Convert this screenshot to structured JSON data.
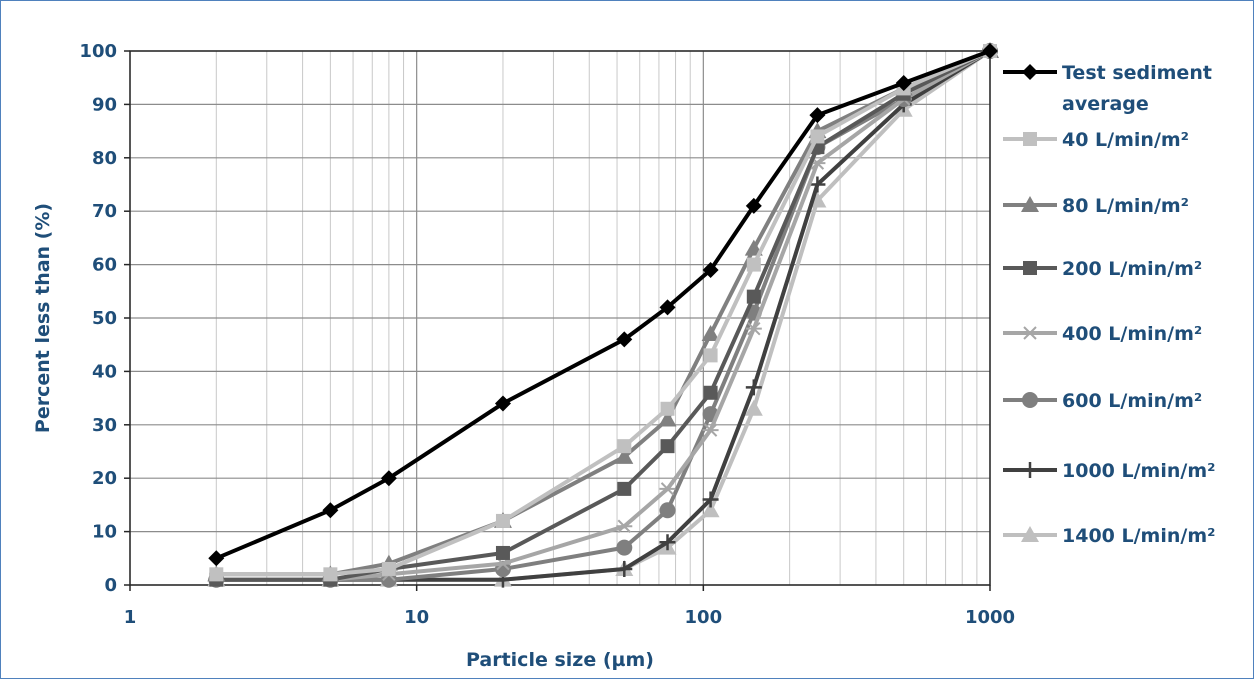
{
  "chart_data": {
    "type": "line",
    "title": "",
    "xlabel": "Particle size (µm)",
    "ylabel": "Percent less than (%)",
    "x_scale": "log",
    "xlim": [
      1,
      1000
    ],
    "ylim": [
      0,
      100
    ],
    "x_ticks": [
      "1",
      "10",
      "100",
      "1000"
    ],
    "y_ticks": [
      "0",
      "10",
      "20",
      "30",
      "40",
      "50",
      "60",
      "70",
      "80",
      "90",
      "100"
    ],
    "grid": true,
    "legend_position": "right",
    "series": [
      {
        "name": "Test sediment average",
        "color": "#000000",
        "marker": "diamond",
        "width": 4,
        "points": [
          [
            2,
            5
          ],
          [
            5,
            14
          ],
          [
            8,
            20
          ],
          [
            20,
            34
          ],
          [
            53,
            46
          ],
          [
            75,
            52
          ],
          [
            106,
            59
          ],
          [
            150,
            71
          ],
          [
            250,
            88
          ],
          [
            500,
            94
          ],
          [
            1000,
            100
          ]
        ]
      },
      {
        "name": "40 L/min/m²",
        "color": "#c0c0c0",
        "marker": "square",
        "width": 4,
        "points": [
          [
            2,
            2
          ],
          [
            5,
            2
          ],
          [
            8,
            3
          ],
          [
            20,
            12
          ],
          [
            53,
            26
          ],
          [
            75,
            33
          ],
          [
            106,
            43
          ],
          [
            150,
            60
          ],
          [
            250,
            84
          ],
          [
            500,
            93
          ],
          [
            1000,
            100
          ]
        ]
      },
      {
        "name": "80 L/min/m²",
        "color": "#808080",
        "marker": "triangle",
        "width": 4,
        "points": [
          [
            2,
            2
          ],
          [
            5,
            2
          ],
          [
            8,
            4
          ],
          [
            20,
            12
          ],
          [
            53,
            24
          ],
          [
            75,
            31
          ],
          [
            106,
            47
          ],
          [
            150,
            63
          ],
          [
            250,
            85
          ],
          [
            500,
            93
          ],
          [
            1000,
            100
          ]
        ]
      },
      {
        "name": "200 L/min/m²",
        "color": "#595959",
        "marker": "square",
        "width": 4,
        "points": [
          [
            2,
            1
          ],
          [
            5,
            1
          ],
          [
            8,
            3
          ],
          [
            20,
            6
          ],
          [
            53,
            18
          ],
          [
            75,
            26
          ],
          [
            106,
            36
          ],
          [
            150,
            54
          ],
          [
            250,
            82
          ],
          [
            500,
            92
          ],
          [
            1000,
            100
          ]
        ]
      },
      {
        "name": "400 L/min/m²",
        "color": "#a6a6a6",
        "marker": "star",
        "width": 4,
        "points": [
          [
            2,
            1
          ],
          [
            5,
            1
          ],
          [
            8,
            2
          ],
          [
            20,
            4
          ],
          [
            53,
            11
          ],
          [
            75,
            18
          ],
          [
            106,
            29
          ],
          [
            150,
            48
          ],
          [
            250,
            79
          ],
          [
            500,
            91
          ],
          [
            1000,
            100
          ]
        ]
      },
      {
        "name": "600 L/min/m²",
        "color": "#7f7f7f",
        "marker": "circle",
        "width": 4,
        "points": [
          [
            2,
            1
          ],
          [
            5,
            1
          ],
          [
            8,
            1
          ],
          [
            20,
            3
          ],
          [
            53,
            7
          ],
          [
            75,
            14
          ],
          [
            106,
            32
          ],
          [
            150,
            51
          ],
          [
            250,
            82
          ],
          [
            500,
            91
          ],
          [
            1000,
            100
          ]
        ]
      },
      {
        "name": "1000 L/min/m²",
        "color": "#404040",
        "marker": "plus",
        "width": 4,
        "points": [
          [
            2,
            1
          ],
          [
            5,
            1
          ],
          [
            8,
            1
          ],
          [
            20,
            1
          ],
          [
            53,
            3
          ],
          [
            75,
            8
          ],
          [
            106,
            16
          ],
          [
            150,
            37
          ],
          [
            250,
            75
          ],
          [
            500,
            90
          ],
          [
            1000,
            100
          ]
        ]
      },
      {
        "name": "1400 L/min/m²",
        "color": "#bfbfbf",
        "marker": "triangle",
        "width": 4,
        "points": [
          [
            2,
            1
          ],
          [
            5,
            1
          ],
          [
            8,
            1
          ],
          [
            20,
            1
          ],
          [
            53,
            3
          ],
          [
            75,
            7
          ],
          [
            106,
            14
          ],
          [
            150,
            33
          ],
          [
            250,
            72
          ],
          [
            500,
            89
          ],
          [
            1000,
            100
          ]
        ]
      }
    ]
  }
}
